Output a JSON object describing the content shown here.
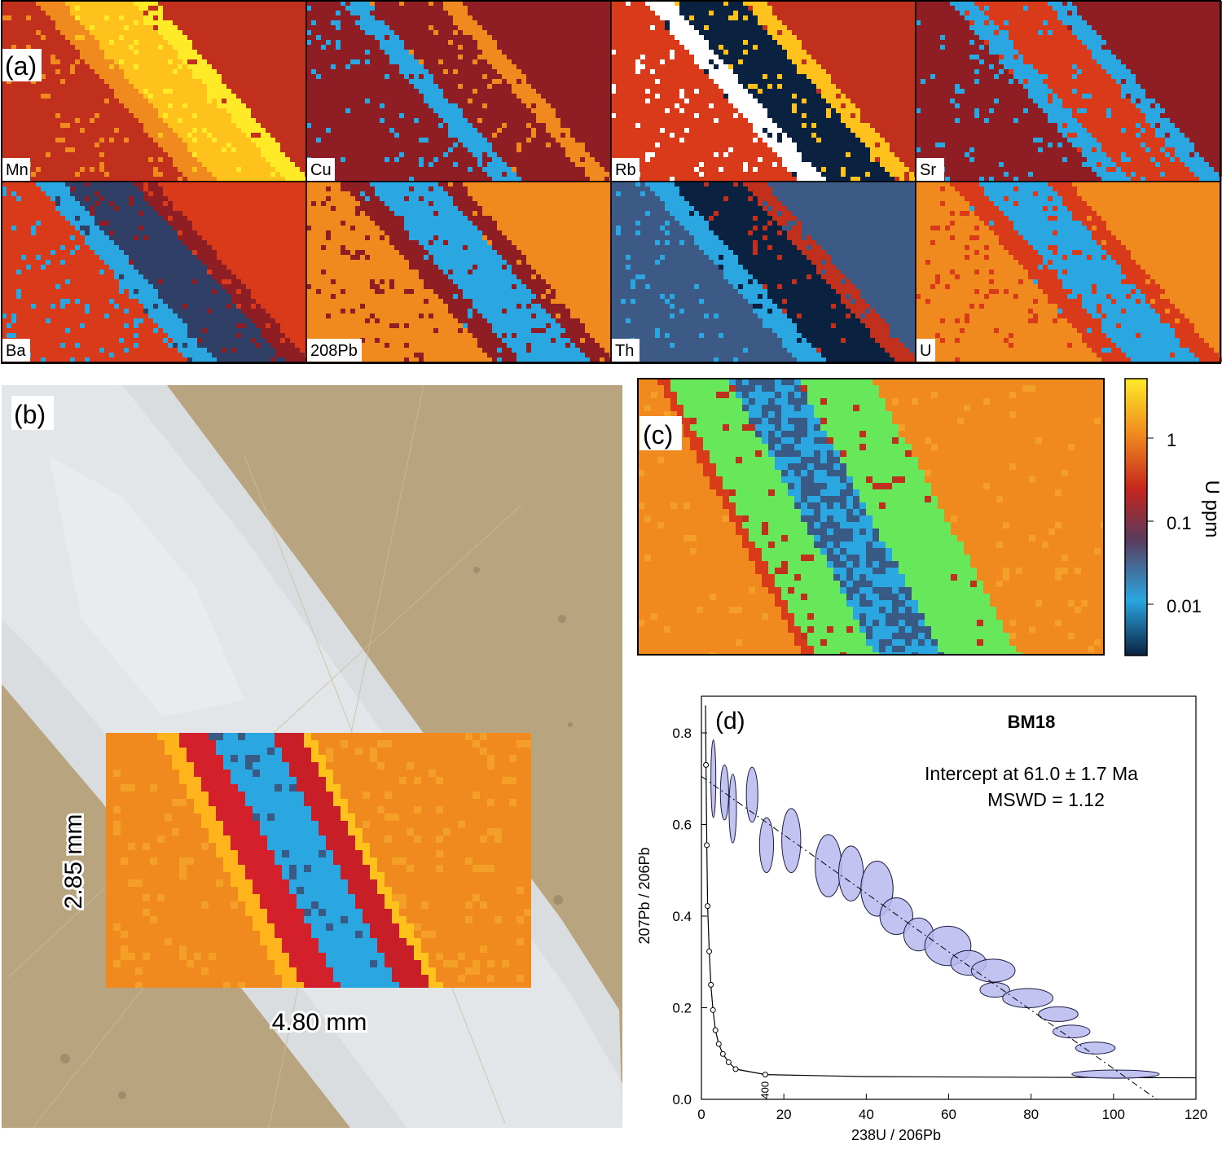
{
  "panel_labels": {
    "a": "(a)",
    "b": "(b)",
    "c": "(c)",
    "d": "(d)"
  },
  "element_maps": [
    "Mn",
    "Cu",
    "Rb",
    "Sr",
    "Ba",
    "208Pb",
    "Th",
    "U"
  ],
  "scale": {
    "height": "2.85 mm",
    "width": "4.80 mm"
  },
  "colorbar": {
    "label": "U ppm",
    "ticks": [
      "1",
      "0.1",
      "0.01"
    ]
  },
  "colors": {
    "hot": "#f08a1e",
    "warm": "#d93a1a",
    "dark_red": "#8e1d24",
    "blue": "#2aa6e0",
    "navy": "#0a2240",
    "green": "#66e85a",
    "yellow": "#ffea28",
    "ellipse_fill": "#b9b9ee",
    "ellipse_stroke": "#1c1c44",
    "rock": "#b8a47e",
    "vein": "#d9dde0"
  },
  "chart_data": {
    "type": "scatter",
    "subtype": "Tera-Wasserburg concordia with error ellipses",
    "title": "BM18",
    "annotations": [
      "Intercept at 61.0 ± 1.7 Ma",
      "MSWD = 1.12"
    ],
    "xlabel": "238U / 206Pb",
    "ylabel": "207Pb / 206Pb",
    "xlim": [
      0,
      120
    ],
    "ylim": [
      0,
      0.88
    ],
    "xticks": [
      0,
      20,
      40,
      60,
      80,
      100,
      120
    ],
    "yticks": [
      0.0,
      0.2,
      0.4,
      0.6,
      0.8
    ],
    "xtick_labels": [
      "0",
      "20",
      "40",
      "60",
      "80",
      "100",
      "120"
    ],
    "ytick_labels": [
      "0.0",
      "0.2",
      "0.4",
      "0.6",
      "0.8"
    ],
    "regression_line": {
      "x": [
        0,
        110.5
      ],
      "y": [
        0.705,
        0.0
      ]
    },
    "concordia_label": "400",
    "concordia_points": [
      {
        "x": 1.1,
        "y": 0.73
      },
      {
        "x": 1.3,
        "y": 0.555
      },
      {
        "x": 1.5,
        "y": 0.422
      },
      {
        "x": 1.9,
        "y": 0.323
      },
      {
        "x": 2.3,
        "y": 0.25
      },
      {
        "x": 2.8,
        "y": 0.195
      },
      {
        "x": 3.4,
        "y": 0.151
      },
      {
        "x": 4.2,
        "y": 0.121
      },
      {
        "x": 5.2,
        "y": 0.099
      },
      {
        "x": 6.6,
        "y": 0.081
      },
      {
        "x": 8.3,
        "y": 0.066
      },
      {
        "x": 15.5,
        "y": 0.054
      }
    ],
    "ellipses": [
      {
        "x": 2.9,
        "y": 0.7,
        "sx": 0.6,
        "sy": 0.085
      },
      {
        "x": 5.6,
        "y": 0.67,
        "sx": 1.0,
        "sy": 0.06
      },
      {
        "x": 7.6,
        "y": 0.635,
        "sx": 0.9,
        "sy": 0.075
      },
      {
        "x": 12.3,
        "y": 0.665,
        "sx": 1.4,
        "sy": 0.06
      },
      {
        "x": 15.8,
        "y": 0.555,
        "sx": 1.7,
        "sy": 0.06
      },
      {
        "x": 21.8,
        "y": 0.565,
        "sx": 2.3,
        "sy": 0.07
      },
      {
        "x": 30.8,
        "y": 0.51,
        "sx": 3.2,
        "sy": 0.068
      },
      {
        "x": 36.3,
        "y": 0.493,
        "sx": 3.0,
        "sy": 0.06
      },
      {
        "x": 42.6,
        "y": 0.46,
        "sx": 3.9,
        "sy": 0.06
      },
      {
        "x": 47.3,
        "y": 0.4,
        "sx": 4.0,
        "sy": 0.04
      },
      {
        "x": 52.7,
        "y": 0.36,
        "sx": 3.6,
        "sy": 0.036
      },
      {
        "x": 59.8,
        "y": 0.335,
        "sx": 5.6,
        "sy": 0.043
      },
      {
        "x": 64.8,
        "y": 0.298,
        "sx": 4.3,
        "sy": 0.027
      },
      {
        "x": 70.8,
        "y": 0.281,
        "sx": 5.3,
        "sy": 0.025
      },
      {
        "x": 71.2,
        "y": 0.239,
        "sx": 3.6,
        "sy": 0.016
      },
      {
        "x": 79.2,
        "y": 0.221,
        "sx": 6.1,
        "sy": 0.021
      },
      {
        "x": 86.6,
        "y": 0.186,
        "sx": 4.8,
        "sy": 0.016
      },
      {
        "x": 89.8,
        "y": 0.148,
        "sx": 4.5,
        "sy": 0.014
      },
      {
        "x": 95.6,
        "y": 0.112,
        "sx": 4.8,
        "sy": 0.013
      },
      {
        "x": 100.5,
        "y": 0.055,
        "sx": 10.6,
        "sy": 0.009
      }
    ]
  }
}
